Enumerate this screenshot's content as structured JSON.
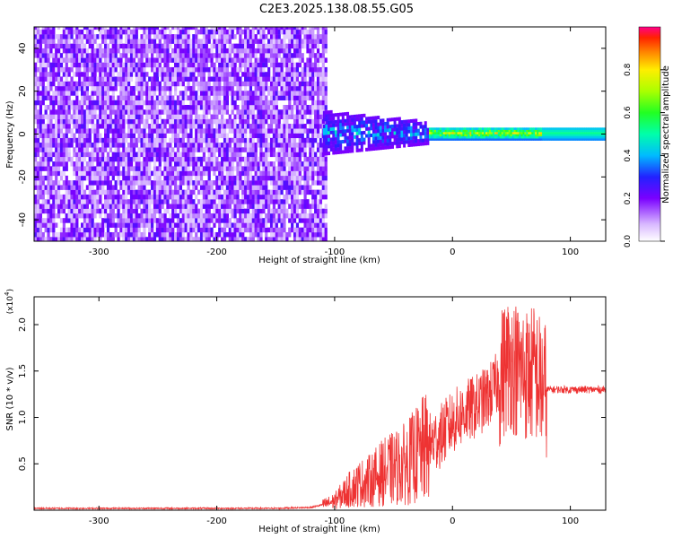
{
  "title": "C2E3.2025.138.08.55.G05",
  "chart_data": [
    {
      "type": "heatmap",
      "xlabel": "Height of straight line (km)",
      "ylabel": "Frequency (Hz)",
      "xlim": [
        -355,
        130
      ],
      "ylim": [
        -50,
        50
      ],
      "xticks": [
        -300,
        -200,
        -100,
        0,
        100
      ],
      "yticks": [
        -40,
        -20,
        0,
        20,
        40
      ],
      "colorbar": {
        "label": "Normalized spectral amplitude",
        "range": [
          0.0,
          1.0
        ],
        "ticks": [
          0.0,
          0.2,
          0.4,
          0.6,
          0.8
        ],
        "tick_labels": [
          "0.0",
          "0.2",
          "0.4",
          "0.6",
          "0.8"
        ]
      },
      "regions": [
        {
          "x_range": [
            -355,
            -110
          ],
          "freq_range": [
            -50,
            50
          ],
          "amplitude": "low (0.0–0.2), broadband noise"
        },
        {
          "x_range": [
            -110,
            -20
          ],
          "freq_range": [
            -10,
            10
          ],
          "amplitude": "0.2–0.5, narrowing band"
        },
        {
          "x_range": [
            -20,
            75
          ],
          "freq_range": [
            -2,
            2
          ],
          "amplitude": "0.4–0.9, peaks near 0 Hz"
        },
        {
          "x_range": [
            75,
            130
          ],
          "freq_range": [
            -2,
            2
          ],
          "amplitude": "0.4–0.5, steady carrier"
        }
      ],
      "grid": false
    },
    {
      "type": "line",
      "xlabel": "Height of straight line (km)",
      "ylabel": "SNR (10 * v/v)",
      "y_multiplier_label": "(x10",
      "y_multiplier_exp": "4",
      "y_multiplier_close": ")",
      "xlim": [
        -355,
        130
      ],
      "ylim": [
        0,
        2.3
      ],
      "xticks": [
        -300,
        -200,
        -100,
        0,
        100
      ],
      "yticks": [
        0.5,
        1.0,
        1.5,
        2.0
      ],
      "ytick_labels": [
        "0.5",
        "1.0",
        "1.5",
        "2.0"
      ],
      "series": [
        {
          "color": "#ee3333",
          "x": [
            -355,
            -300,
            -250,
            -200,
            -150,
            -120,
            -110,
            -100,
            -90,
            -80,
            -70,
            -60,
            -50,
            -40,
            -30,
            -20,
            -10,
            0,
            10,
            20,
            30,
            40,
            45,
            50,
            55,
            60,
            65,
            70,
            75,
            80,
            90,
            100,
            110,
            120,
            130
          ],
          "y": [
            0.02,
            0.02,
            0.02,
            0.02,
            0.02,
            0.03,
            0.06,
            0.1,
            0.2,
            0.28,
            0.32,
            0.4,
            0.45,
            0.5,
            0.6,
            0.7,
            0.8,
            0.95,
            1.05,
            1.12,
            1.22,
            1.4,
            1.55,
            1.6,
            1.5,
            1.5,
            1.45,
            1.5,
            1.35,
            1.3,
            1.3,
            1.3,
            1.3,
            1.3,
            1.3
          ]
        }
      ],
      "grid": false
    }
  ]
}
